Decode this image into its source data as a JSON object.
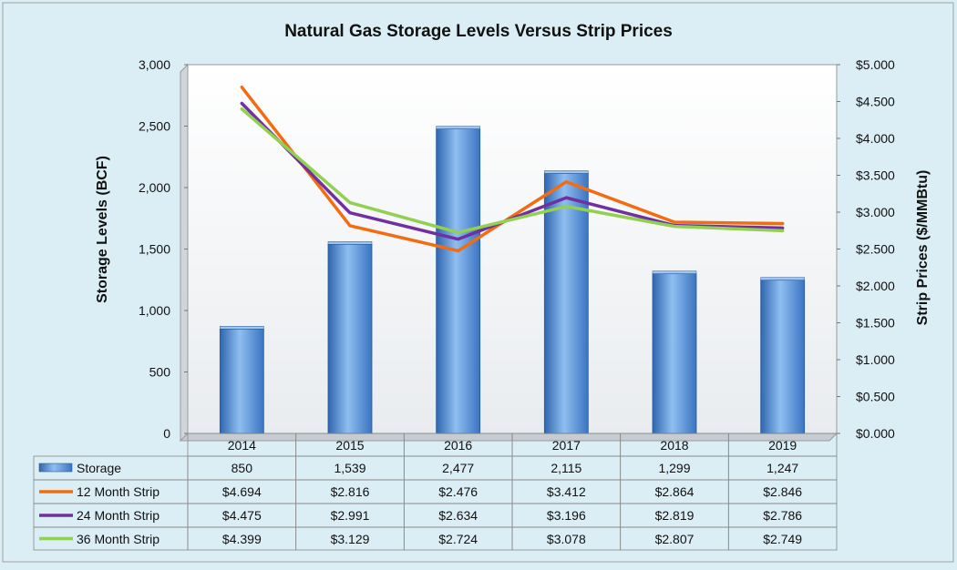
{
  "chart_data": {
    "type": "bar+line",
    "title": "Natural Gas Storage Levels Versus Strip Prices",
    "categories": [
      "2014",
      "2015",
      "2016",
      "2017",
      "2018",
      "2019"
    ],
    "y_left": {
      "label": "Storage Levels (BCF)",
      "range": [
        0,
        3000
      ],
      "ticks": [
        0,
        500,
        1000,
        1500,
        2000,
        2500,
        3000
      ],
      "tick_labels": [
        "0",
        "500",
        "1,000",
        "1,500",
        "2,000",
        "2,500",
        "3,000"
      ]
    },
    "y_right": {
      "label": "Strip Prices ($/MMBtu)",
      "range": [
        0,
        5
      ],
      "ticks": [
        0,
        0.5,
        1,
        1.5,
        2,
        2.5,
        3,
        3.5,
        4,
        4.5,
        5
      ],
      "tick_labels": [
        "$0.000",
        "$0.500",
        "$1.000",
        "$1.500",
        "$2.000",
        "$2.500",
        "$3.000",
        "$3.500",
        "$4.000",
        "$4.500",
        "$5.000"
      ]
    },
    "series": [
      {
        "name": "Storage",
        "kind": "bar",
        "axis": "left",
        "color": "#4f8fd6",
        "values": [
          850,
          1539,
          2477,
          2115,
          1299,
          1247
        ],
        "labels": [
          "850",
          "1,539",
          "2,477",
          "2,115",
          "1,299",
          "1,247"
        ]
      },
      {
        "name": "12 Month Strip",
        "kind": "line",
        "axis": "right",
        "color": "#f36c12",
        "values": [
          4.694,
          2.816,
          2.476,
          3.412,
          2.864,
          2.846
        ],
        "labels": [
          "$4.694",
          "$2.816",
          "$2.476",
          "$3.412",
          "$2.864",
          "$2.846"
        ]
      },
      {
        "name": "24 Month Strip",
        "kind": "line",
        "axis": "right",
        "color": "#7030a0",
        "values": [
          4.475,
          2.991,
          2.634,
          3.196,
          2.819,
          2.786
        ],
        "labels": [
          "$4.475",
          "$2.991",
          "$2.634",
          "$3.196",
          "$2.819",
          "$2.786"
        ]
      },
      {
        "name": "36 Month Strip",
        "kind": "line",
        "axis": "right",
        "color": "#92d050",
        "values": [
          4.399,
          3.129,
          2.724,
          3.078,
          2.807,
          2.749
        ],
        "labels": [
          "$4.399",
          "$3.129",
          "$2.724",
          "$3.078",
          "$2.807",
          "$2.749"
        ]
      }
    ],
    "grid": false,
    "legend": "data table below chart"
  }
}
